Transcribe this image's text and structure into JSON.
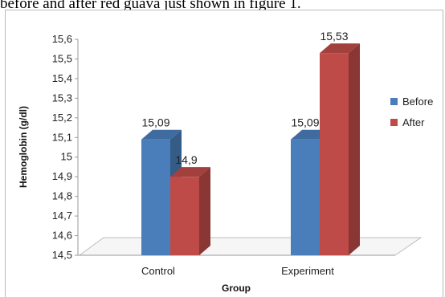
{
  "page": {
    "caption_fragment": "before and after red guava just shown in figure 1."
  },
  "chart_data": {
    "type": "bar",
    "title": "",
    "xlabel": "Group",
    "ylabel": "Hemoglobin (g/dl)",
    "categories": [
      "Control",
      "Experiment"
    ],
    "series": [
      {
        "name": "Before",
        "values": [
          15.09,
          15.09
        ],
        "labels": [
          "15,09",
          "15,09"
        ],
        "color": "#4a7ebb"
      },
      {
        "name": "After",
        "values": [
          14.9,
          15.53
        ],
        "labels": [
          "14,9",
          "15,53"
        ],
        "color": "#be4b48"
      }
    ],
    "ylim": [
      14.5,
      15.6
    ],
    "yticks": [
      {
        "value": 14.5,
        "label": "14,5"
      },
      {
        "value": 14.6,
        "label": "14,6"
      },
      {
        "value": 14.7,
        "label": "14,7"
      },
      {
        "value": 14.8,
        "label": "14,8"
      },
      {
        "value": 14.9,
        "label": "14,9"
      },
      {
        "value": 15.0,
        "label": "15"
      },
      {
        "value": 15.1,
        "label": "15,1"
      },
      {
        "value": 15.2,
        "label": "15,2"
      },
      {
        "value": 15.3,
        "label": "15,3"
      },
      {
        "value": 15.4,
        "label": "15,4"
      },
      {
        "value": 15.5,
        "label": "15,5"
      },
      {
        "value": 15.6,
        "label": "15,6"
      }
    ],
    "grid": false,
    "legend_position": "right",
    "style": "3d-column"
  }
}
